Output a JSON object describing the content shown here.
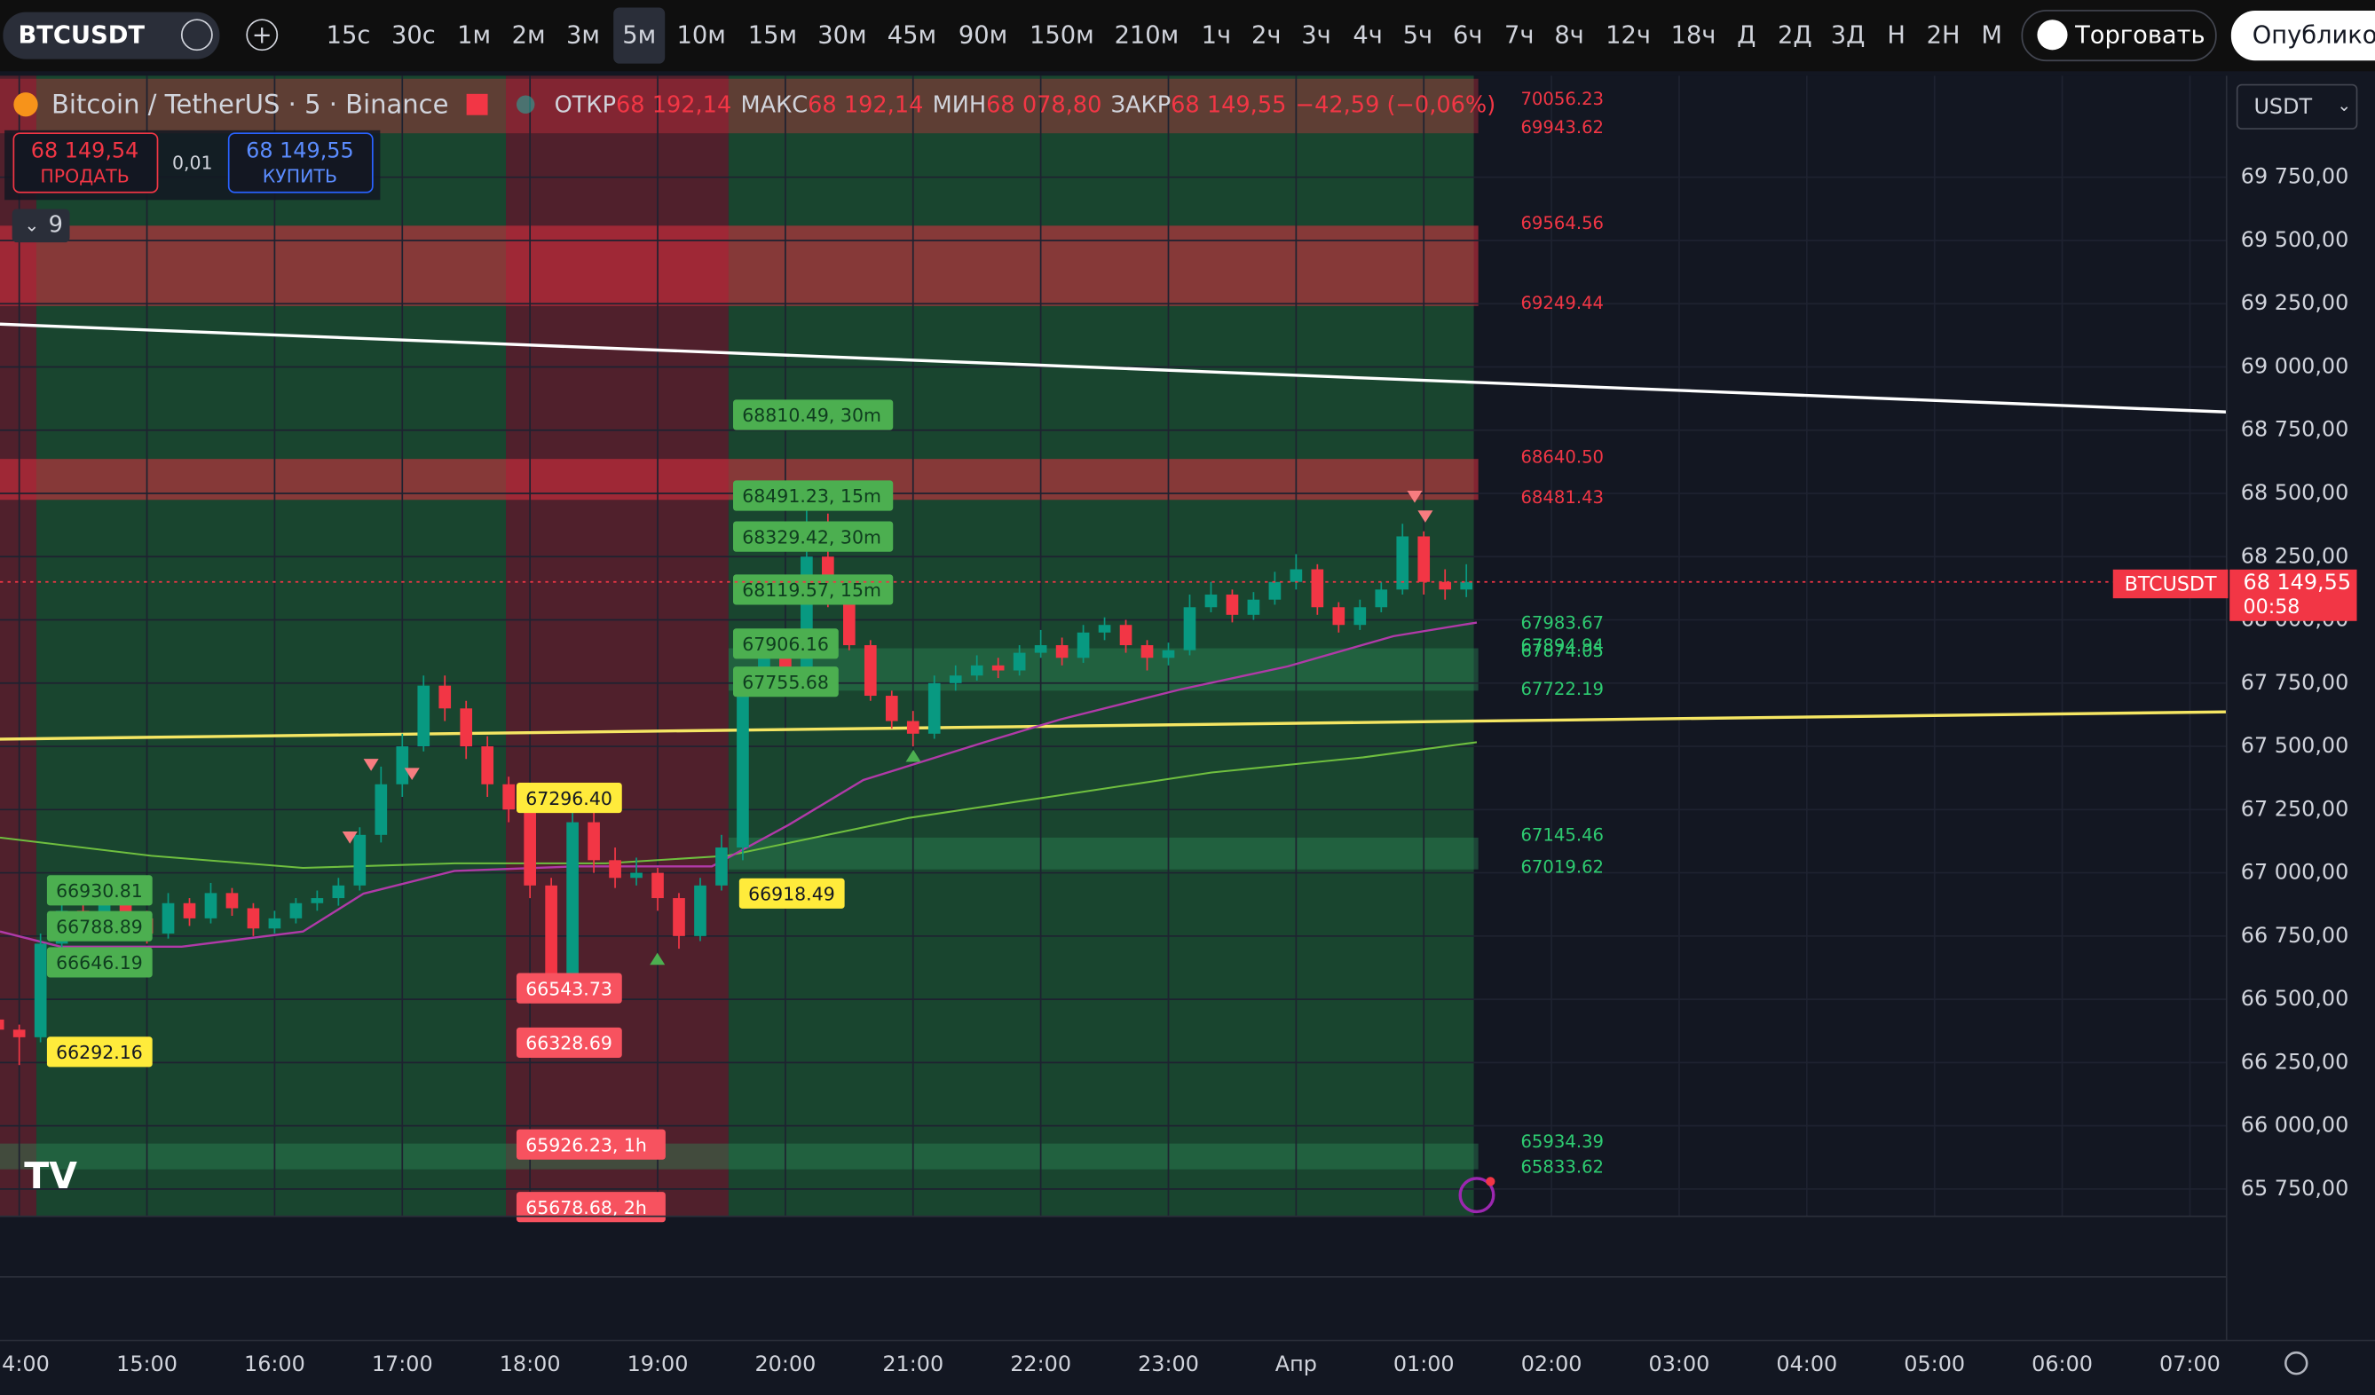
{
  "toolbar": {
    "symbol": "BTCUSDT",
    "intervals": [
      "15с",
      "30с",
      "1м",
      "2м",
      "3м",
      "5м",
      "10м",
      "15м",
      "30м",
      "45м",
      "90м",
      "150м",
      "210м",
      "1ч",
      "2ч",
      "3ч",
      "4ч",
      "5ч",
      "6ч",
      "7ч",
      "8ч",
      "12ч",
      "18ч",
      "Д",
      "2Д",
      "3Д",
      "Н",
      "2Н",
      "М"
    ],
    "active_index": 5,
    "trade": "Торговать",
    "publish": "Опубликовать"
  },
  "legend": {
    "symbol": "Bitcoin / TetherUS · 5 · Binance",
    "o_label": "ОТКР",
    "o": "68 192,14",
    "h_label": "МАКС",
    "h": "68 192,14",
    "l_label": "МИН",
    "l": "68 078,80",
    "c_label": "ЗАКР",
    "c": "68 149,55",
    "change": "−42,59 (−0,06%)"
  },
  "trade": {
    "sell_price": "68 149,54",
    "sell": "ПРОДАТЬ",
    "spread": "0,01",
    "buy_price": "68 149,55",
    "buy": "КУПИТЬ"
  },
  "indicators_count": "9",
  "currency": "USDT",
  "price_axis": {
    "ticks": [
      {
        "value": 69750,
        "label": "69 750,00"
      },
      {
        "value": 69500,
        "label": "69 500,00"
      },
      {
        "value": 69250,
        "label": "69 250,00"
      },
      {
        "value": 69000,
        "label": "69 000,00"
      },
      {
        "value": 68750,
        "label": "68 750,00"
      },
      {
        "value": 68500,
        "label": "68 500,00"
      },
      {
        "value": 68250,
        "label": "68 250,00"
      },
      {
        "value": 68000,
        "label": "68 000,00"
      },
      {
        "value": 67750,
        "label": "67 750,00"
      },
      {
        "value": 67500,
        "label": "67 500,00"
      },
      {
        "value": 67250,
        "label": "67 250,00"
      },
      {
        "value": 67000,
        "label": "67 000,00"
      },
      {
        "value": 66750,
        "label": "66 750,00"
      },
      {
        "value": 66500,
        "label": "66 500,00"
      },
      {
        "value": 66250,
        "label": "66 250,00"
      },
      {
        "value": 66000,
        "label": "66 000,00"
      },
      {
        "value": 65750,
        "label": "65 750,00"
      }
    ],
    "last_symbol": "BTCUSDT",
    "last_price": "68 149,55",
    "countdown": "00:58"
  },
  "time_axis": [
    "4:00",
    "15:00",
    "16:00",
    "17:00",
    "18:00",
    "19:00",
    "20:00",
    "21:00",
    "22:00",
    "23:00",
    "Апр",
    "01:00",
    "02:00",
    "03:00",
    "04:00",
    "05:00",
    "06:00",
    "07:00"
  ],
  "levels": {
    "red": [
      70056.23,
      69943.62,
      69564.56,
      69249.44,
      {
        "value": 68640.5,
        "label": "68640.50"
      },
      68481.43
    ],
    "green": [
      67983.67,
      67894.94,
      67874.05,
      67722.19,
      67145.46,
      67019.62,
      65934.39,
      65833.62
    ]
  },
  "tags": {
    "green": [
      {
        "value": 68810.49,
        "label": "68810.49, 30m"
      },
      {
        "value": 68491.23,
        "label": "68491.23, 15m"
      },
      {
        "value": 68329.42,
        "label": "68329.42, 30m"
      },
      {
        "value": 68119.57,
        "label": "68119.57, 15m"
      },
      67906.16,
      67755.68,
      66930.81,
      66788.89,
      66646.19
    ],
    "yellow": [
      66292.16,
      {
        "value": 67296.4,
        "label": "67296.40"
      },
      66918.49
    ],
    "red": [
      66543.73,
      66328.69,
      {
        "value": 65926.23,
        "label": "65926.23, 1h"
      },
      {
        "value": 65678.68,
        "label": "65678.68, 2h"
      }
    ]
  },
  "candles": [
    [
      66420,
      66440,
      66360,
      66380
    ],
    [
      66380,
      66400,
      66240,
      66350
    ],
    [
      66350,
      66760,
      66330,
      66720
    ],
    [
      66720,
      66900,
      66700,
      66850
    ],
    [
      66850,
      66880,
      66740,
      66780
    ],
    [
      66780,
      66950,
      66760,
      66900
    ],
    [
      66900,
      66930,
      66800,
      66820
    ],
    [
      66820,
      66850,
      66720,
      66760
    ],
    [
      66760,
      66920,
      66740,
      66880
    ],
    [
      66880,
      66900,
      66790,
      66820
    ],
    [
      66820,
      66960,
      66800,
      66920
    ],
    [
      66920,
      66940,
      66830,
      66860
    ],
    [
      66860,
      66880,
      66750,
      66780
    ],
    [
      66780,
      66850,
      66760,
      66820
    ],
    [
      66820,
      66900,
      66800,
      66880
    ],
    [
      66880,
      66930,
      66850,
      66900
    ],
    [
      66900,
      66980,
      66870,
      66950
    ],
    [
      66950,
      67180,
      66930,
      67150
    ],
    [
      67150,
      67420,
      67120,
      67350
    ],
    [
      67350,
      67550,
      67300,
      67500
    ],
    [
      67500,
      67780,
      67480,
      67740
    ],
    [
      67740,
      67780,
      67600,
      67650
    ],
    [
      67650,
      67680,
      67450,
      67500
    ],
    [
      67500,
      67540,
      67300,
      67350
    ],
    [
      67350,
      67380,
      67200,
      67250
    ],
    [
      67250,
      67280,
      66900,
      66950
    ],
    [
      66950,
      66980,
      66540,
      66600
    ],
    [
      66600,
      67300,
      66580,
      67200
    ],
    [
      67200,
      67250,
      67000,
      67050
    ],
    [
      67050,
      67100,
      66940,
      66980
    ],
    [
      66980,
      67060,
      66950,
      67000
    ],
    [
      67000,
      67020,
      66850,
      66900
    ],
    [
      66900,
      66920,
      66700,
      66750
    ],
    [
      66750,
      66980,
      66730,
      66950
    ],
    [
      66950,
      67150,
      66930,
      67100
    ],
    [
      67100,
      67800,
      67050,
      67750
    ],
    [
      67750,
      67900,
      67700,
      67850
    ],
    [
      67850,
      67880,
      67760,
      67800
    ],
    [
      67800,
      68480,
      67780,
      68250
    ],
    [
      68250,
      68420,
      68050,
      68100
    ],
    [
      68100,
      68150,
      67880,
      67900
    ],
    [
      67900,
      67920,
      67680,
      67700
    ],
    [
      67700,
      67720,
      67570,
      67600
    ],
    [
      67600,
      67640,
      67500,
      67550
    ],
    [
      67550,
      67780,
      67530,
      67750
    ],
    [
      67750,
      67820,
      67720,
      67780
    ],
    [
      67780,
      67860,
      67760,
      67820
    ],
    [
      67820,
      67850,
      67770,
      67800
    ],
    [
      67800,
      67900,
      67780,
      67870
    ],
    [
      67870,
      67960,
      67850,
      67900
    ],
    [
      67900,
      67930,
      67820,
      67850
    ],
    [
      67850,
      67980,
      67830,
      67950
    ],
    [
      67950,
      68010,
      67920,
      67980
    ],
    [
      67980,
      68000,
      67870,
      67900
    ],
    [
      67900,
      67920,
      67800,
      67850
    ],
    [
      67850,
      67910,
      67820,
      67880
    ],
    [
      67880,
      68100,
      67860,
      68050
    ],
    [
      68050,
      68150,
      68030,
      68100
    ],
    [
      68100,
      68120,
      67990,
      68020
    ],
    [
      68020,
      68110,
      68000,
      68080
    ],
    [
      68080,
      68190,
      68060,
      68150
    ],
    [
      68150,
      68260,
      68120,
      68200
    ],
    [
      68200,
      68220,
      68020,
      68050
    ],
    [
      68050,
      68070,
      67950,
      67980
    ],
    [
      67980,
      68080,
      67960,
      68050
    ],
    [
      68050,
      68150,
      68030,
      68120
    ],
    [
      68120,
      68380,
      68100,
      68330
    ],
    [
      68330,
      68350,
      68100,
      68150
    ],
    [
      68150,
      68200,
      68080,
      68120
    ],
    [
      68120,
      68220,
      68090,
      68150
    ]
  ]
}
